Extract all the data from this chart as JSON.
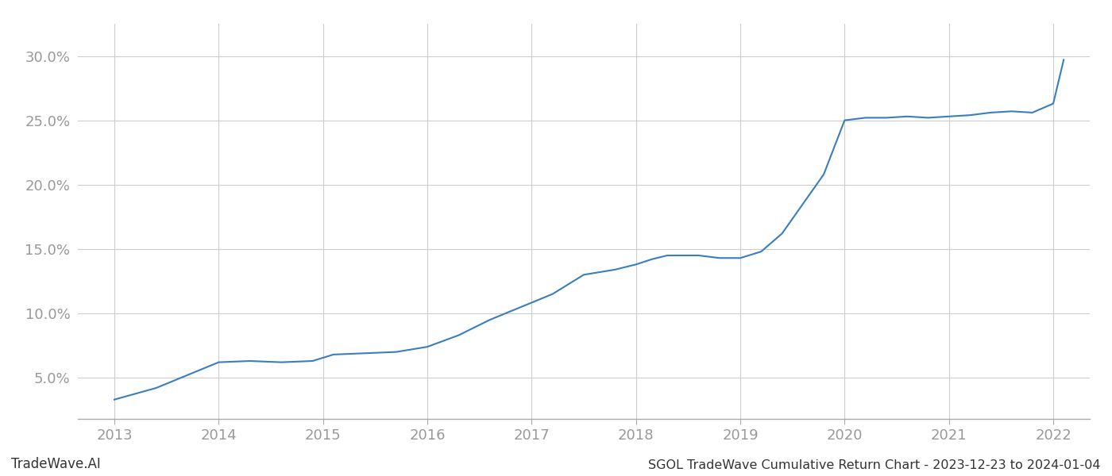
{
  "x": [
    2013.0,
    2013.4,
    2013.7,
    2014.0,
    2014.3,
    2014.6,
    2014.9,
    2015.1,
    2015.4,
    2015.7,
    2016.0,
    2016.3,
    2016.6,
    2016.9,
    2017.2,
    2017.5,
    2017.8,
    2018.0,
    2018.15,
    2018.3,
    2018.6,
    2018.8,
    2019.0,
    2019.2,
    2019.4,
    2019.6,
    2019.8,
    2020.0,
    2020.2,
    2020.4,
    2020.6,
    2020.8,
    2021.0,
    2021.2,
    2021.4,
    2021.6,
    2021.8,
    2022.0,
    2022.1
  ],
  "y": [
    0.033,
    0.042,
    0.052,
    0.062,
    0.063,
    0.062,
    0.063,
    0.068,
    0.069,
    0.07,
    0.074,
    0.083,
    0.095,
    0.105,
    0.115,
    0.13,
    0.134,
    0.138,
    0.142,
    0.145,
    0.145,
    0.143,
    0.143,
    0.148,
    0.162,
    0.185,
    0.208,
    0.25,
    0.252,
    0.252,
    0.253,
    0.252,
    0.253,
    0.254,
    0.256,
    0.257,
    0.256,
    0.263,
    0.297
  ],
  "line_color": "#3a7ebf",
  "line_width": 1.5,
  "bg_color": "#ffffff",
  "grid_color": "#cccccc",
  "title_text": "SGOL TradeWave Cumulative Return Chart - 2023-12-23 to 2024-01-04",
  "watermark_text": "TradeWave.AI",
  "yticks": [
    0.05,
    0.1,
    0.15,
    0.2,
    0.25,
    0.3
  ],
  "ytick_labels": [
    "5.0%",
    "10.0%",
    "15.0%",
    "20.0%",
    "25.0%",
    "30.0%"
  ],
  "xticks": [
    2013,
    2014,
    2015,
    2016,
    2017,
    2018,
    2019,
    2020,
    2021,
    2022
  ],
  "xtick_labels": [
    "2013",
    "2014",
    "2015",
    "2016",
    "2017",
    "2018",
    "2019",
    "2020",
    "2021",
    "2022"
  ],
  "xlim": [
    2012.65,
    2022.35
  ],
  "ylim": [
    0.018,
    0.325
  ],
  "tick_color": "#999999",
  "tick_fontsize": 13,
  "title_fontsize": 11.5,
  "watermark_fontsize": 12
}
